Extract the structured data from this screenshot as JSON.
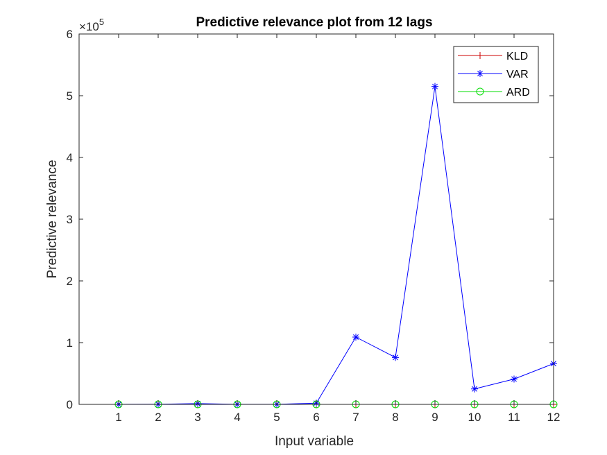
{
  "chart_data": {
    "type": "line",
    "title": "Predictive relevance plot from 12 lags",
    "xlabel": "Input variable",
    "ylabel": "Predictive relevance",
    "exponent_base": "×10",
    "exponent_power": "5",
    "x": [
      1,
      2,
      3,
      4,
      5,
      6,
      7,
      8,
      9,
      10,
      11,
      12
    ],
    "x_tick_labels": [
      "1",
      "2",
      "3",
      "4",
      "5",
      "6",
      "7",
      "8",
      "9",
      "10",
      "11",
      "12"
    ],
    "xlim": [
      0,
      12
    ],
    "ylim": [
      0,
      600000
    ],
    "y_ticks": [
      0,
      100000,
      200000,
      300000,
      400000,
      500000,
      600000
    ],
    "y_tick_labels": [
      "0",
      "1",
      "2",
      "3",
      "4",
      "5",
      "6"
    ],
    "grid": false,
    "legend_position": "top-right",
    "series": [
      {
        "name": "KLD",
        "marker": "plus",
        "color": "#cc0000",
        "values": [
          0,
          0,
          0,
          0,
          0,
          0,
          0,
          0,
          0,
          0,
          0,
          0
        ]
      },
      {
        "name": "VAR",
        "marker": "asterisk",
        "color": "#0000ff",
        "values": [
          200,
          300,
          1200,
          200,
          200,
          2000,
          109000,
          76000,
          515000,
          25000,
          41000,
          66000
        ]
      },
      {
        "name": "ARD",
        "marker": "circle",
        "color": "#00dd00",
        "values": [
          0,
          0,
          0,
          0,
          0,
          0,
          0,
          0,
          0,
          0,
          0,
          0
        ]
      }
    ]
  }
}
